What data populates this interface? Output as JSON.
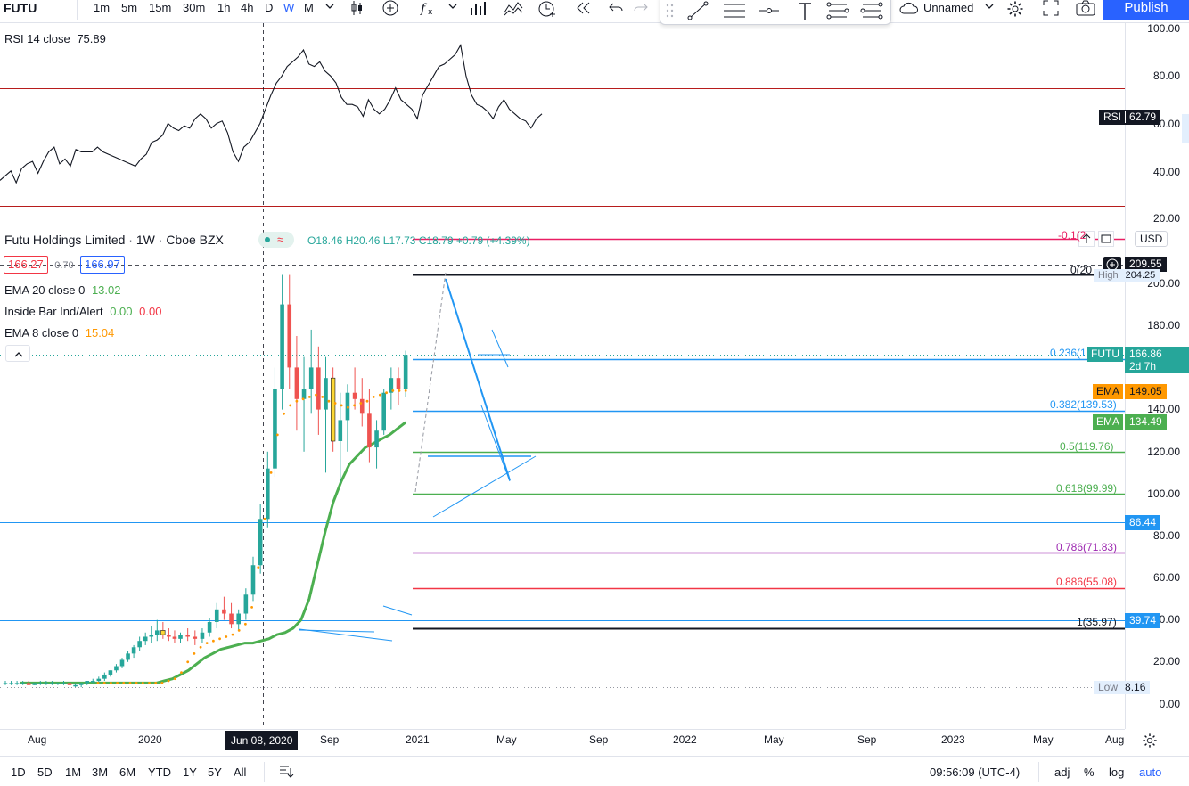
{
  "toolbar": {
    "symbol": "FUTU",
    "intervals": [
      "1m",
      "5m",
      "15m",
      "30m",
      "1h",
      "4h",
      "D",
      "W",
      "M"
    ],
    "active_interval": "W",
    "layout_name": "Unnamed",
    "publish_label": "Publish"
  },
  "rsi": {
    "legend": "RSI 14 close",
    "value": "75.89",
    "current_tag": "62.79",
    "tag_prefix": "RSI",
    "scale_labels": [
      "100.00",
      "80.00",
      "60.00",
      "40.00",
      "20.00"
    ],
    "series": [
      36,
      38,
      40,
      35,
      41,
      43,
      44,
      39,
      44,
      48,
      50,
      43,
      45,
      42,
      49,
      48,
      48,
      48,
      50,
      48,
      47,
      46,
      45,
      44,
      43,
      42,
      45,
      47,
      52,
      53,
      55,
      60,
      58,
      57,
      59,
      58,
      62,
      64,
      62,
      58,
      60,
      61,
      56,
      48,
      44,
      50,
      52,
      56,
      60,
      66,
      72,
      77,
      80,
      84,
      86,
      88,
      91,
      85,
      84,
      86,
      82,
      80,
      77,
      71,
      68,
      68,
      67,
      63,
      70,
      66,
      64,
      66,
      70,
      75,
      70,
      68,
      66,
      62,
      72,
      76,
      80,
      84,
      85,
      87,
      89,
      93,
      80,
      72,
      68,
      67,
      65,
      62,
      67,
      70,
      66,
      64,
      62,
      61,
      58,
      62,
      64
    ]
  },
  "legend": {
    "title": "Futu Holdings Limited",
    "interval": "1W",
    "exchange": "Cboe BZX",
    "ohlc": {
      "open": "O18.46",
      "high": "H20.46",
      "low": "L17.73",
      "close": "C18.79",
      "change": "+0.79 (+4.39%)"
    },
    "sell": "166.27",
    "spread": "0.70",
    "buy": "166.97",
    "indicators": [
      {
        "label": "EMA 20 close 0",
        "value": "13.02",
        "color": "#4caf50"
      },
      {
        "label": "Inside Bar Ind/Alert",
        "value": "0.00",
        "value2": "0.00",
        "color": "#f23645"
      },
      {
        "label": "EMA 8 close 0",
        "value": "15.04",
        "color": "#ff9800"
      }
    ]
  },
  "price_scale": {
    "labels": [
      "200.00",
      "180.00",
      "160.00",
      "140.00",
      "120.00",
      "100.00",
      "80.00",
      "60.00",
      "40.00",
      "20.00",
      "0.00"
    ],
    "currency": "USD",
    "tags": [
      {
        "text": "209.55",
        "color": "#131722",
        "prefix": ""
      },
      {
        "text": "204.25",
        "color": "#e3effd",
        "prefix": "High"
      },
      {
        "text": "166.86",
        "color": "#26a69a",
        "prefix": "FUTU",
        "sub": "2d 7h"
      },
      {
        "text": "149.05",
        "color": "#ff9800",
        "prefix": "EMA"
      },
      {
        "text": "134.49",
        "color": "#4caf50",
        "prefix": "EMA"
      },
      {
        "text": "86.44",
        "color": "#2196f3",
        "prefix": ""
      },
      {
        "text": "39.74",
        "color": "#2196f3",
        "prefix": ""
      },
      {
        "text": "8.16",
        "color": "#e3effd",
        "prefix": "Low"
      }
    ]
  },
  "fibonacci": [
    {
      "label": "-0.1(2",
      "price": 221
    },
    {
      "label": "0(20",
      "price": 204.25
    },
    {
      "label": "0.236(1",
      "price": 164
    },
    {
      "label": "0.382(139.53)",
      "price": 139.53
    },
    {
      "label": "0.5(119.76)",
      "price": 119.76
    },
    {
      "label": "0.618(99.99)",
      "price": 99.99
    },
    {
      "label": "0.786(71.83)",
      "price": 71.83
    },
    {
      "label": "0.886(55.08)",
      "price": 55.08
    },
    {
      "label": "1(35.97)",
      "price": 35.97
    }
  ],
  "time_axis": {
    "labels": [
      "Aug",
      "2020",
      "Sep",
      "2021",
      "May",
      "Sep",
      "2022",
      "May",
      "Sep",
      "2023",
      "May",
      "Aug"
    ],
    "crosshair_label": "Jun 08, 2020"
  },
  "bottom": {
    "ranges": [
      "1D",
      "5D",
      "1M",
      "3M",
      "6M",
      "YTD",
      "1Y",
      "5Y",
      "All"
    ],
    "clock": "09:56:09 (UTC-4)",
    "options": [
      "adj",
      "%",
      "log",
      "auto"
    ]
  },
  "chart_data": {
    "type": "candlestick",
    "symbol": "FUTU",
    "interval": "1W",
    "ema20": [
      10,
      10,
      10,
      10,
      10,
      10,
      10,
      10,
      10,
      10,
      10,
      10,
      10,
      10,
      10,
      10,
      10,
      10,
      11,
      12,
      14,
      16,
      19,
      22,
      24,
      26,
      27,
      28,
      29,
      29,
      30,
      31,
      33,
      34,
      36,
      40,
      50,
      66,
      82,
      96,
      106,
      114,
      118,
      122,
      124,
      126,
      128,
      131,
      134
    ],
    "ema8": [
      10,
      10,
      10,
      10,
      10,
      10,
      10,
      10,
      10,
      10,
      10,
      11,
      12,
      15,
      20,
      24,
      27,
      29,
      30,
      31,
      32,
      33,
      35,
      38,
      46,
      65,
      88,
      110,
      128,
      138,
      142,
      144,
      145,
      146,
      147,
      146,
      144,
      143,
      142,
      141,
      142,
      143,
      144,
      146,
      147,
      148,
      149,
      149,
      149
    ],
    "candles": [
      [
        10,
        11,
        9,
        10
      ],
      [
        10,
        11,
        9,
        10
      ],
      [
        10,
        11,
        9,
        10
      ],
      [
        10,
        11,
        9,
        10
      ],
      [
        10,
        11,
        9,
        9
      ],
      [
        9,
        10,
        9,
        10
      ],
      [
        10,
        11,
        9,
        10
      ],
      [
        10,
        11,
        9,
        10
      ],
      [
        10,
        11,
        9,
        10
      ],
      [
        10,
        10,
        9,
        10
      ],
      [
        10,
        11,
        9,
        10
      ],
      [
        10,
        10,
        9,
        9
      ],
      [
        9,
        10,
        8,
        9
      ],
      [
        9,
        10,
        8,
        10
      ],
      [
        10,
        11,
        9,
        11
      ],
      [
        11,
        12,
        10,
        11
      ],
      [
        11,
        13,
        10,
        12
      ],
      [
        12,
        15,
        11,
        14
      ],
      [
        14,
        16,
        13,
        16
      ],
      [
        16,
        19,
        15,
        18
      ],
      [
        18,
        22,
        17,
        21
      ],
      [
        21,
        25,
        20,
        24
      ],
      [
        24,
        28,
        22,
        27
      ],
      [
        27,
        32,
        25,
        30
      ],
      [
        30,
        34,
        28,
        32
      ],
      [
        32,
        37,
        29,
        33
      ],
      [
        33,
        40,
        30,
        35
      ],
      [
        35,
        39,
        31,
        33
      ],
      [
        33,
        36,
        30,
        32
      ],
      [
        32,
        35,
        29,
        31
      ],
      [
        31,
        34,
        29,
        33
      ],
      [
        33,
        36,
        30,
        32
      ],
      [
        32,
        35,
        28,
        31
      ],
      [
        31,
        36,
        29,
        34
      ],
      [
        34,
        41,
        32,
        39
      ],
      [
        39,
        48,
        36,
        45
      ],
      [
        45,
        51,
        40,
        43
      ],
      [
        43,
        48,
        36,
        38
      ],
      [
        38,
        45,
        35,
        43
      ],
      [
        43,
        55,
        40,
        52
      ],
      [
        52,
        70,
        49,
        66
      ],
      [
        66,
        95,
        62,
        88
      ],
      [
        88,
        120,
        84,
        112
      ],
      [
        112,
        160,
        108,
        150
      ],
      [
        150,
        204,
        140,
        190
      ],
      [
        190,
        204,
        150,
        160
      ],
      [
        160,
        175,
        130,
        145
      ],
      [
        145,
        165,
        120,
        150
      ],
      [
        150,
        178,
        138,
        160
      ],
      [
        160,
        170,
        128,
        140
      ],
      [
        140,
        165,
        110,
        155
      ],
      [
        155,
        160,
        120,
        125
      ],
      [
        125,
        148,
        105,
        135
      ],
      [
        135,
        152,
        120,
        148
      ],
      [
        148,
        160,
        140,
        145
      ],
      [
        145,
        155,
        132,
        138
      ],
      [
        138,
        150,
        115,
        122
      ],
      [
        122,
        135,
        112,
        130
      ],
      [
        130,
        150,
        128,
        148
      ],
      [
        148,
        160,
        140,
        155
      ],
      [
        155,
        160,
        142,
        150
      ],
      [
        150,
        168,
        146,
        166
      ]
    ],
    "horizontal_lines": [
      86.44,
      39.74
    ],
    "high": 204.25,
    "low": 8.16,
    "last": 166.86,
    "ylim": [
      0,
      215
    ]
  }
}
